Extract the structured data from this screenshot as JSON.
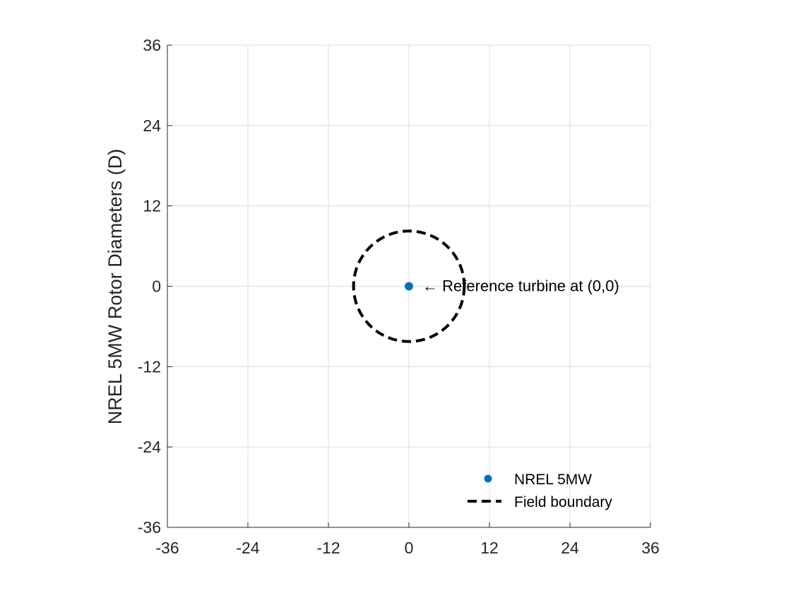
{
  "chart_data": {
    "type": "scatter",
    "title": "",
    "xlabel": "",
    "ylabel": "NREL 5MW Rotor Diameters (D)",
    "xlim": [
      -36,
      36
    ],
    "ylim": [
      -36,
      36
    ],
    "xticks": [
      -36,
      -24,
      -12,
      0,
      12,
      24,
      36
    ],
    "yticks": [
      -36,
      -24,
      -12,
      0,
      12,
      24,
      36
    ],
    "xtick_labels": [
      "-36",
      "-24",
      "-12",
      "0",
      "12",
      "24",
      "36"
    ],
    "ytick_labels": [
      "-36",
      "-24",
      "-12",
      "0",
      "12",
      "24",
      "36"
    ],
    "grid": true,
    "legend_position": "bottom-right",
    "series": [
      {
        "name": "NREL 5MW",
        "kind": "scatter",
        "color": "#0072BD",
        "points": [
          {
            "x": 0,
            "y": 0
          }
        ]
      },
      {
        "name": "Field boundary",
        "kind": "circle-dashed",
        "color": "#000000",
        "center": {
          "x": 0,
          "y": 0
        },
        "radius": 8.25
      }
    ],
    "annotations": [
      {
        "text": "← Reference turbine at (0,0)",
        "x": 2,
        "y": 0
      }
    ]
  }
}
